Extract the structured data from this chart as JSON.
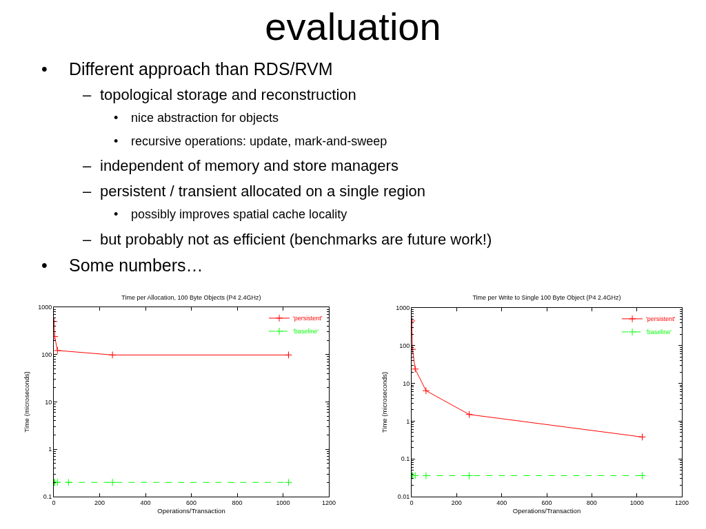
{
  "chart_data": [
    {
      "type": "other",
      "title": "evaluation",
      "annotations": [
        "•\tDifferent approach than RDS/RVM",
        "–\ttopological storage and reconstruction",
        "•\tnice abstraction for objects",
        "•\trecursive operations: update, mark-and-sweep",
        "–\tindependent of memory and store managers",
        "–\tpersistent / transient allocated on a single region",
        "•\tpossibly improves spatial cache locality",
        "–\tbut probably not as efficient (benchmarks are future work!)",
        "•\tSome numbers…"
      ]
    },
    {
      "type": "line",
      "title": "Time per Allocation, 100 Byte Objects (P4 2.4GHz)",
      "xlabel": "Operations/Transaction",
      "ylabel": "Time (microseconds)",
      "xlim": [
        0,
        1200
      ],
      "xticks": [
        0,
        200,
        400,
        600,
        800,
        1000,
        1200
      ],
      "ylim": [
        0.1,
        1000
      ],
      "yticks": [
        0.1,
        1,
        10,
        100,
        1000
      ],
      "log": "y",
      "grid": false,
      "legend": "top right",
      "marker": "cross",
      "series": [
        {
          "name": "'persistent'",
          "color": "#ff0000",
          "line_style": "solid",
          "x": [
            1,
            4,
            16,
            256,
            1024
          ],
          "values": [
            500,
            240,
            122,
            98,
            98
          ]
        },
        {
          "name": "'baseline'",
          "color": "#00ff00",
          "line_style": "dashed",
          "x": [
            1,
            4,
            16,
            64,
            256,
            1024
          ],
          "values": [
            0.2,
            0.2,
            0.2,
            0.2,
            0.2,
            0.2
          ]
        }
      ]
    },
    {
      "type": "line",
      "title": "Time per Write to Single 100 Byte Object (P4 2.4GHz)",
      "xlabel": "Operations/Transaction",
      "ylabel": "Time (microseconds)",
      "xlim": [
        0,
        1200
      ],
      "xticks": [
        0,
        200,
        400,
        600,
        800,
        1000,
        1200
      ],
      "ylim": [
        0.01,
        1000
      ],
      "yticks": [
        0.01,
        0.1,
        1,
        10,
        100,
        1000
      ],
      "log": "y",
      "grid": false,
      "legend": "top right",
      "marker": "cross",
      "series": [
        {
          "name": "'persistent'",
          "color": "#ff0000",
          "line_style": "solid",
          "x": [
            1,
            4,
            16,
            64,
            256,
            1024
          ],
          "values": [
            450,
            80,
            24,
            6.4,
            1.5,
            0.38
          ]
        },
        {
          "name": "'baseline'",
          "color": "#00ff00",
          "line_style": "dashed",
          "x": [
            1,
            4,
            16,
            64,
            256,
            1024
          ],
          "values": [
            0.036,
            0.036,
            0.036,
            0.036,
            0.036,
            0.036
          ]
        }
      ]
    }
  ]
}
